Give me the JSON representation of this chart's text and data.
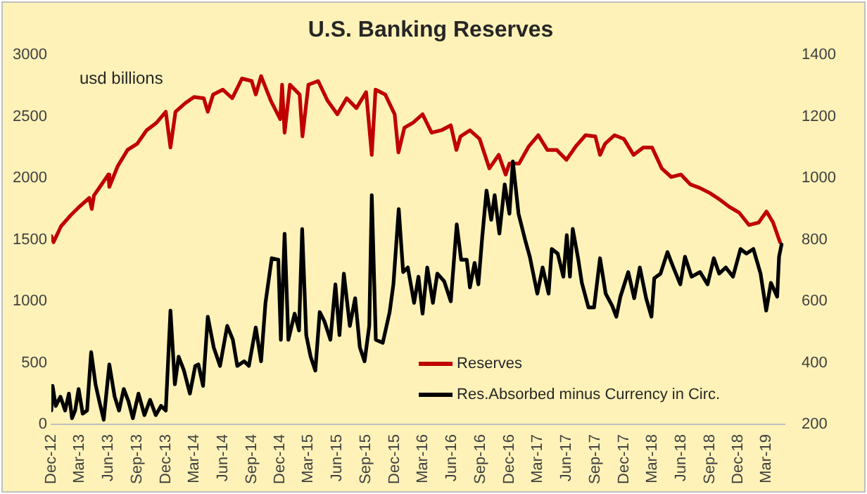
{
  "chart_data": {
    "type": "line",
    "title": "U.S. Banking Reserves",
    "annotations": [
      "usd billions"
    ],
    "xlim": [
      "2012-12",
      "2019-04-28"
    ],
    "xticks": [
      {
        "value": "2012-12",
        "label": "Dec-12"
      },
      {
        "value": "2013-03",
        "label": "Mar-13"
      },
      {
        "value": "2013-06",
        "label": "Jun-13"
      },
      {
        "value": "2013-09",
        "label": "Sep-13"
      },
      {
        "value": "2013-12",
        "label": "Dec-13"
      },
      {
        "value": "2014-03",
        "label": "Mar-14"
      },
      {
        "value": "2014-06",
        "label": "Jun-14"
      },
      {
        "value": "2014-09",
        "label": "Sep-14"
      },
      {
        "value": "2014-12",
        "label": "Dec-14"
      },
      {
        "value": "2015-03",
        "label": "Mar-15"
      },
      {
        "value": "2015-06",
        "label": "Jun-15"
      },
      {
        "value": "2015-09",
        "label": "Sep-15"
      },
      {
        "value": "2015-12",
        "label": "Dec-15"
      },
      {
        "value": "2016-03",
        "label": "Mar-16"
      },
      {
        "value": "2016-06",
        "label": "Jun-16"
      },
      {
        "value": "2016-09",
        "label": "Sep-16"
      },
      {
        "value": "2016-12",
        "label": "Dec-16"
      },
      {
        "value": "2017-03",
        "label": "Mar-17"
      },
      {
        "value": "2017-06",
        "label": "Jun-17"
      },
      {
        "value": "2017-09",
        "label": "Sep-17"
      },
      {
        "value": "2017-12",
        "label": "Dec-17"
      },
      {
        "value": "2018-03",
        "label": "Mar-18"
      },
      {
        "value": "2018-06",
        "label": "Jun-18"
      },
      {
        "value": "2018-09",
        "label": "Sep-18"
      },
      {
        "value": "2018-12",
        "label": "Dec-18"
      },
      {
        "value": "2019-03",
        "label": "Mar-19"
      }
    ],
    "ylim": [
      0,
      3000
    ],
    "yticks": [
      0,
      500,
      1000,
      1500,
      2000,
      2500,
      3000
    ],
    "y2lim": [
      200,
      1400
    ],
    "y2ticks": [
      200,
      400,
      600,
      800,
      1000,
      1200,
      1400
    ],
    "grid": false,
    "legend": "bottom right",
    "marker": "none",
    "line_style": "solid",
    "series": [
      {
        "name": "Reserves",
        "color": "#c00000",
        "x": [
          "2012-12-01",
          "2012-12-08",
          "2013-01-01",
          "2013-02-01",
          "2013-03-01",
          "2013-04-01",
          "2013-04-09",
          "2013-04-16",
          "2013-06-01",
          "2013-06-04",
          "2013-07-01",
          "2013-08-01",
          "2013-09-01",
          "2013-10-01",
          "2013-11-01",
          "2013-12-01",
          "2013-12-16",
          "2014-01-01",
          "2014-02-01",
          "2014-03-01",
          "2014-04-01",
          "2014-04-14",
          "2014-05-01",
          "2014-06-01",
          "2014-07-01",
          "2014-08-01",
          "2014-09-01",
          "2014-09-14",
          "2014-10-01",
          "2014-11-01",
          "2014-12-01",
          "2014-12-07",
          "2014-12-15",
          "2015-01-01",
          "2015-02-01",
          "2015-02-10",
          "2015-03-01",
          "2015-04-01",
          "2015-05-01",
          "2015-06-01",
          "2015-07-01",
          "2015-08-01",
          "2015-09-01",
          "2015-09-19",
          "2015-10-01",
          "2015-11-01",
          "2015-12-01",
          "2015-12-13",
          "2016-01-01",
          "2016-01-28",
          "2016-02-28",
          "2016-03-28",
          "2016-04-28",
          "2016-05-28",
          "2016-06-15",
          "2016-06-28",
          "2016-07-28",
          "2016-08-28",
          "2016-09-28",
          "2016-10-28",
          "2016-11-19",
          "2016-12-01",
          "2017-01-01",
          "2017-02-01",
          "2017-03-03",
          "2017-04-01",
          "2017-05-01",
          "2017-06-01",
          "2017-07-01",
          "2017-08-01",
          "2017-09-01",
          "2017-09-16",
          "2017-10-02",
          "2017-11-01",
          "2017-12-01",
          "2018-01-01",
          "2018-02-01",
          "2018-03-01",
          "2018-04-01",
          "2018-05-01",
          "2018-06-01",
          "2018-07-01",
          "2018-08-01",
          "2018-09-01",
          "2018-10-01",
          "2018-11-01",
          "2018-12-04",
          "2019-01-04",
          "2019-02-04",
          "2019-03-01",
          "2019-03-22",
          "2019-04-13"
        ],
        "values": [
          1530,
          1480,
          1610,
          1700,
          1770,
          1840,
          1750,
          1860,
          2030,
          1930,
          2100,
          2230,
          2280,
          2390,
          2450,
          2540,
          2250,
          2540,
          2610,
          2660,
          2650,
          2540,
          2680,
          2720,
          2650,
          2810,
          2790,
          2680,
          2830,
          2630,
          2480,
          2760,
          2370,
          2760,
          2680,
          2340,
          2760,
          2790,
          2630,
          2520,
          2650,
          2570,
          2700,
          2190,
          2720,
          2680,
          2520,
          2210,
          2410,
          2450,
          2520,
          2370,
          2390,
          2430,
          2230,
          2340,
          2390,
          2320,
          2080,
          2190,
          2030,
          2120,
          2120,
          2260,
          2350,
          2230,
          2230,
          2150,
          2260,
          2350,
          2340,
          2190,
          2280,
          2350,
          2320,
          2190,
          2250,
          2250,
          2080,
          2010,
          2030,
          1950,
          1920,
          1880,
          1830,
          1770,
          1720,
          1620,
          1640,
          1730,
          1640,
          1480
        ]
      },
      {
        "name": "Res.Absorbed minus Currency in Circ.",
        "color": "#000000",
        "axis": "y2",
        "x": [
          "2012-12-01",
          "2012-12-05",
          "2012-12-15",
          "2012-12-30",
          "2013-01-14",
          "2013-01-26",
          "2013-02-05",
          "2013-02-15",
          "2013-02-26",
          "2013-03-11",
          "2013-03-25",
          "2013-04-07",
          "2013-04-21",
          "2013-05-03",
          "2013-05-17",
          "2013-06-04",
          "2013-06-21",
          "2013-07-05",
          "2013-07-20",
          "2013-08-04",
          "2013-08-18",
          "2013-09-05",
          "2013-09-24",
          "2013-10-12",
          "2013-10-30",
          "2013-11-16",
          "2013-12-01",
          "2013-12-16",
          "2013-12-30",
          "2014-01-11",
          "2014-01-28",
          "2014-02-16",
          "2014-03-05",
          "2014-03-15",
          "2014-03-30",
          "2014-04-14",
          "2014-05-03",
          "2014-05-23",
          "2014-06-15",
          "2014-07-03",
          "2014-07-17",
          "2014-08-08",
          "2014-08-23",
          "2014-09-14",
          "2014-10-01",
          "2014-10-15",
          "2014-11-04",
          "2014-11-25",
          "2014-12-03",
          "2014-12-15",
          "2014-12-27",
          "2015-01-16",
          "2015-01-30",
          "2015-02-09",
          "2015-02-22",
          "2015-03-08",
          "2015-03-23",
          "2015-04-06",
          "2015-04-21",
          "2015-05-10",
          "2015-05-26",
          "2015-06-08",
          "2015-06-22",
          "2015-07-11",
          "2015-07-28",
          "2015-08-12",
          "2015-08-27",
          "2015-09-11",
          "2015-09-19",
          "2015-10-02",
          "2015-10-24",
          "2015-11-15",
          "2015-11-27",
          "2015-12-14",
          "2015-12-28",
          "2016-01-12",
          "2016-02-01",
          "2016-02-15",
          "2016-02-28",
          "2016-03-14",
          "2016-04-01",
          "2016-04-15",
          "2016-05-07",
          "2016-05-28",
          "2016-06-16",
          "2016-06-30",
          "2016-07-18",
          "2016-07-28",
          "2016-08-12",
          "2016-08-24",
          "2016-09-05",
          "2016-09-19",
          "2016-10-04",
          "2016-10-15",
          "2016-10-30",
          "2016-11-16",
          "2016-12-01",
          "2016-12-12",
          "2016-12-30",
          "2017-01-20",
          "2017-02-04",
          "2017-02-28",
          "2017-03-17",
          "2017-04-05",
          "2017-04-15",
          "2017-05-04",
          "2017-05-22",
          "2017-06-02",
          "2017-06-12",
          "2017-06-21",
          "2017-07-08",
          "2017-07-20",
          "2017-08-10",
          "2017-08-28",
          "2017-09-16",
          "2017-10-04",
          "2017-10-25",
          "2017-11-07",
          "2017-11-20",
          "2017-12-15",
          "2018-01-03",
          "2018-01-21",
          "2018-02-10",
          "2018-02-27",
          "2018-03-08",
          "2018-03-28",
          "2018-04-19",
          "2018-05-08",
          "2018-05-30",
          "2018-06-14",
          "2018-07-05",
          "2018-08-01",
          "2018-08-25",
          "2018-09-14",
          "2018-10-01",
          "2018-10-22",
          "2018-11-14",
          "2018-12-08",
          "2018-12-27",
          "2019-01-18",
          "2019-02-10",
          "2019-02-28",
          "2019-03-15",
          "2019-04-04",
          "2019-04-10",
          "2019-04-18"
        ],
        "values": [
          245,
          325,
          260,
          290,
          245,
          300,
          220,
          245,
          315,
          235,
          245,
          435,
          330,
          275,
          215,
          395,
          290,
          245,
          315,
          275,
          220,
          300,
          230,
          280,
          230,
          260,
          245,
          570,
          330,
          420,
          375,
          300,
          390,
          395,
          325,
          550,
          450,
          390,
          520,
          475,
          390,
          405,
          390,
          515,
          405,
          595,
          740,
          735,
          475,
          820,
          475,
          560,
          505,
          835,
          490,
          420,
          375,
          565,
          535,
          475,
          655,
          490,
          690,
          520,
          610,
          450,
          405,
          520,
          945,
          475,
          465,
          565,
          655,
          900,
          695,
          710,
          595,
          680,
          560,
          710,
          595,
          690,
          665,
          600,
          850,
          735,
          735,
          645,
          725,
          655,
          805,
          960,
          865,
          945,
          820,
          980,
          885,
          1055,
          885,
          800,
          745,
          625,
          710,
          625,
          770,
          755,
          680,
          815,
          680,
          835,
          740,
          660,
          580,
          580,
          740,
          625,
          585,
          550,
          615,
          695,
          610,
          710,
          610,
          550,
          675,
          690,
          760,
          710,
          655,
          745,
          680,
          695,
          655,
          740,
          690,
          710,
          680,
          770,
          755,
          770,
          690,
          570,
          660,
          615,
          745,
          785
        ]
      }
    ]
  }
}
